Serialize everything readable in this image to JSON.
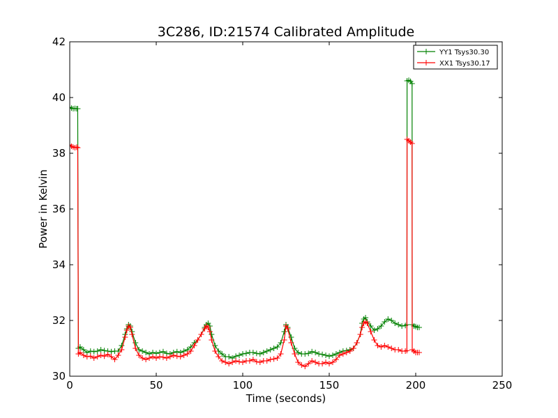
{
  "chart_data": {
    "type": "line",
    "title": "3C286, ID:21574 Calibrated Amplitude",
    "xlabel": "Time (seconds)",
    "ylabel": "Power in Kelvin",
    "xlim": [
      0,
      250
    ],
    "ylim": [
      30,
      42
    ],
    "xticks": [
      "0",
      "50",
      "100",
      "150",
      "200",
      "250"
    ],
    "yticks": [
      "30",
      "32",
      "34",
      "36",
      "38",
      "40",
      "42"
    ],
    "grid": false,
    "legend_position": "top-right",
    "marker": "+",
    "series": [
      {
        "name": "YY1 Tsys30.30",
        "color": "#008000",
        "x": [
          0,
          1,
          2,
          3,
          4,
          4.6,
          5,
          6,
          8,
          10,
          12,
          14,
          16,
          18,
          20,
          22,
          24,
          26,
          28,
          30,
          32,
          33,
          34,
          35,
          36,
          38,
          40,
          42,
          44,
          46,
          48,
          50,
          52,
          54,
          56,
          58,
          60,
          62,
          64,
          66,
          68,
          70,
          72,
          74,
          76,
          78,
          79,
          80,
          81,
          82,
          84,
          86,
          88,
          90,
          92,
          94,
          96,
          98,
          100,
          102,
          104,
          106,
          108,
          110,
          112,
          114,
          116,
          118,
          120,
          122,
          124,
          125,
          126,
          128,
          130,
          132,
          134,
          136,
          138,
          140,
          142,
          144,
          146,
          148,
          150,
          152,
          154,
          156,
          158,
          160,
          162,
          164,
          166,
          168,
          169,
          170,
          171,
          172,
          174,
          176,
          178,
          180,
          182,
          184,
          186,
          188,
          190,
          192,
          194,
          194.9,
          195,
          196,
          197,
          197.9,
          198,
          199,
          200,
          201,
          202
        ],
        "values": [
          39.65,
          39.62,
          39.6,
          39.61,
          39.6,
          39.6,
          31.0,
          31.05,
          30.95,
          30.85,
          30.9,
          30.88,
          30.9,
          30.95,
          30.92,
          30.9,
          30.88,
          30.9,
          30.9,
          31.1,
          31.5,
          31.7,
          31.85,
          31.8,
          31.6,
          31.2,
          30.95,
          30.9,
          30.85,
          30.8,
          30.85,
          30.82,
          30.85,
          30.88,
          30.82,
          30.8,
          30.85,
          30.88,
          30.85,
          30.9,
          30.95,
          31.05,
          31.2,
          31.3,
          31.5,
          31.75,
          31.85,
          31.9,
          31.8,
          31.5,
          31.1,
          30.9,
          30.8,
          30.7,
          30.7,
          30.65,
          30.72,
          30.75,
          30.8,
          30.82,
          30.85,
          30.85,
          30.82,
          30.8,
          30.85,
          30.9,
          30.95,
          31.0,
          31.05,
          31.2,
          31.6,
          31.85,
          31.75,
          31.4,
          31.0,
          30.85,
          30.8,
          30.8,
          30.82,
          30.88,
          30.85,
          30.8,
          30.78,
          30.75,
          30.72,
          30.75,
          30.8,
          30.85,
          30.9,
          30.92,
          30.95,
          31.0,
          31.2,
          31.5,
          31.9,
          32.05,
          32.1,
          31.95,
          31.8,
          31.65,
          31.7,
          31.8,
          31.95,
          32.05,
          32.0,
          31.9,
          31.85,
          31.8,
          31.82,
          31.85,
          40.6,
          40.62,
          40.58,
          40.5,
          31.85,
          31.8,
          31.78,
          31.75,
          31.75
        ]
      },
      {
        "name": "XX1 Tsys30.17",
        "color": "#ff0000",
        "x": [
          0,
          1,
          2,
          3,
          4,
          4.6,
          5,
          6,
          8,
          10,
          12,
          14,
          16,
          18,
          20,
          22,
          24,
          26,
          28,
          30,
          32,
          33,
          34,
          35,
          36,
          38,
          40,
          42,
          44,
          46,
          48,
          50,
          52,
          54,
          56,
          58,
          60,
          62,
          64,
          66,
          68,
          70,
          72,
          74,
          76,
          78,
          79,
          80,
          81,
          82,
          84,
          86,
          88,
          90,
          92,
          94,
          96,
          98,
          100,
          102,
          104,
          106,
          108,
          110,
          112,
          114,
          116,
          118,
          120,
          122,
          124,
          125,
          126,
          128,
          130,
          132,
          134,
          136,
          138,
          140,
          142,
          144,
          146,
          148,
          150,
          152,
          154,
          156,
          158,
          160,
          162,
          164,
          166,
          168,
          169,
          170,
          171,
          172,
          174,
          176,
          178,
          180,
          182,
          184,
          186,
          188,
          190,
          192,
          194,
          194.9,
          195,
          196,
          197,
          197.9,
          198,
          199,
          200,
          201,
          202
        ],
        "values": [
          38.3,
          38.25,
          38.22,
          38.2,
          38.22,
          38.2,
          30.8,
          30.85,
          30.75,
          30.7,
          30.72,
          30.65,
          30.7,
          30.75,
          30.72,
          30.78,
          30.7,
          30.6,
          30.75,
          30.95,
          31.4,
          31.65,
          31.8,
          31.75,
          31.5,
          31.0,
          30.75,
          30.65,
          30.6,
          30.65,
          30.7,
          30.65,
          30.7,
          30.68,
          30.65,
          30.7,
          30.75,
          30.72,
          30.7,
          30.75,
          30.8,
          30.9,
          31.1,
          31.3,
          31.5,
          31.7,
          31.8,
          31.75,
          31.6,
          31.3,
          30.9,
          30.7,
          30.55,
          30.5,
          30.45,
          30.5,
          30.55,
          30.52,
          30.5,
          30.55,
          30.55,
          30.6,
          30.52,
          30.5,
          30.55,
          30.55,
          30.6,
          30.62,
          30.65,
          30.8,
          31.3,
          31.8,
          31.7,
          31.2,
          30.8,
          30.5,
          30.4,
          30.35,
          30.45,
          30.55,
          30.5,
          30.45,
          30.45,
          30.5,
          30.45,
          30.5,
          30.6,
          30.75,
          30.8,
          30.85,
          30.9,
          31.0,
          31.2,
          31.5,
          31.75,
          31.9,
          31.95,
          31.9,
          31.6,
          31.3,
          31.1,
          31.05,
          31.1,
          31.05,
          31.0,
          30.95,
          30.95,
          30.9,
          30.9,
          30.92,
          38.5,
          38.45,
          38.4,
          38.35,
          30.95,
          30.9,
          30.85,
          30.85,
          30.85
        ]
      }
    ]
  }
}
